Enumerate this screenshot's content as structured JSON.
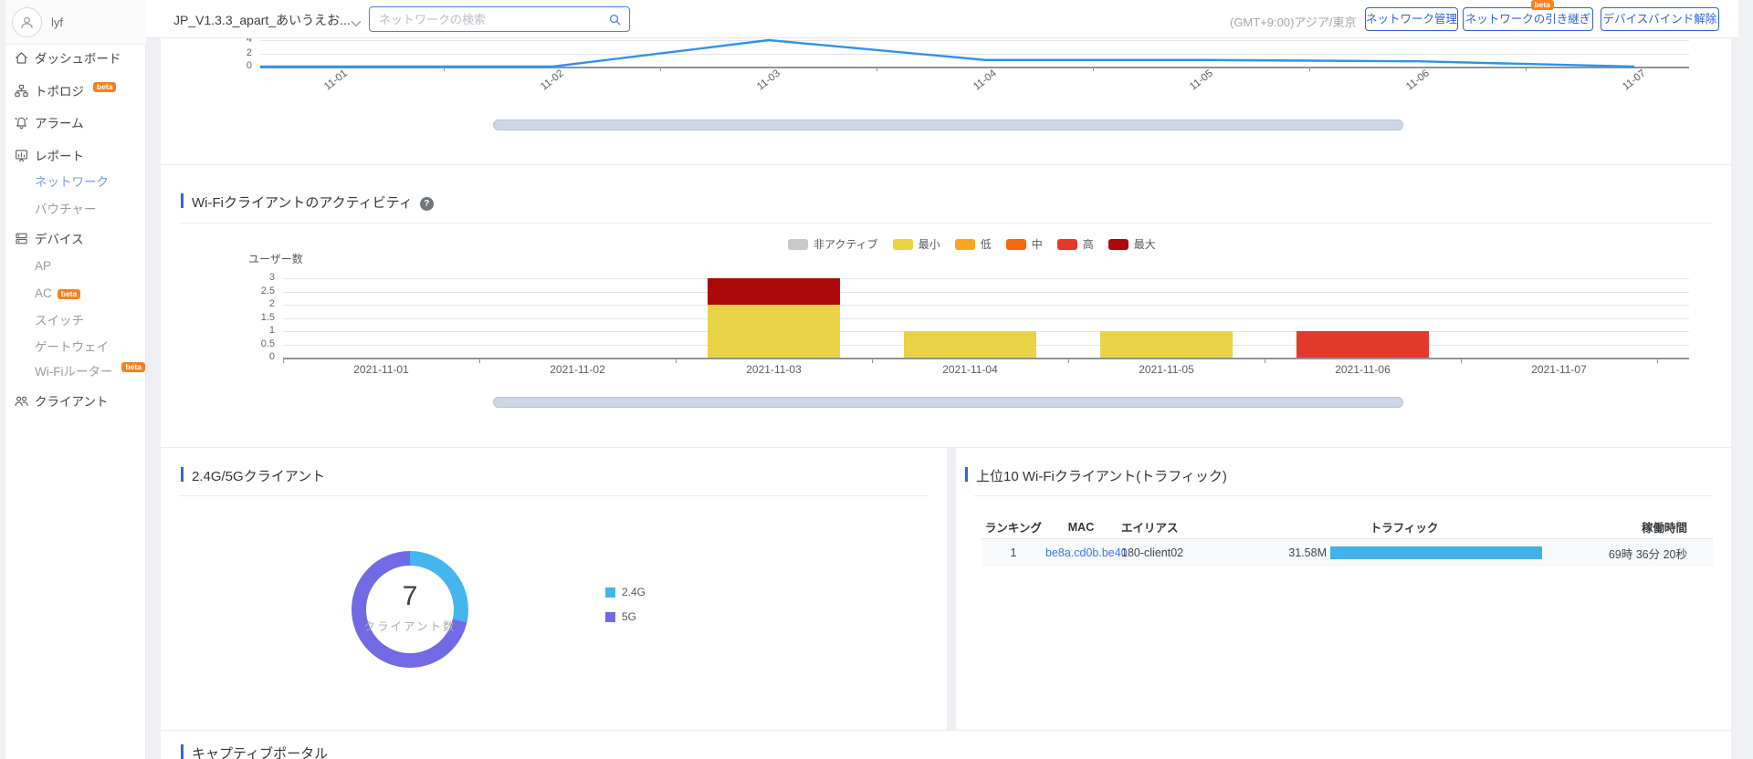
{
  "sidebar": {
    "user_name": "lyf",
    "items": [
      {
        "id": "dashboard",
        "label": "ダッシュボード",
        "icon": "home",
        "level": 1
      },
      {
        "id": "topology",
        "label": "トポロジ",
        "icon": "topology",
        "level": 1,
        "badge": "beta",
        "badge_raised": true
      },
      {
        "id": "alarm",
        "label": "アラーム",
        "icon": "alarm",
        "level": 1
      },
      {
        "id": "report",
        "label": "レポート",
        "icon": "report",
        "level": 1
      },
      {
        "id": "report-network",
        "label": "ネットワーク",
        "level": 2,
        "active": true
      },
      {
        "id": "report-voucher",
        "label": "バウチャー",
        "level": 2
      },
      {
        "id": "device",
        "label": "デバイス",
        "icon": "device",
        "level": 1
      },
      {
        "id": "device-ap",
        "label": "AP",
        "level": 2
      },
      {
        "id": "device-ac",
        "label": "AC",
        "level": 2,
        "badge": "beta"
      },
      {
        "id": "device-switch",
        "label": "スイッチ",
        "level": 2
      },
      {
        "id": "device-gateway",
        "label": "ゲートウェイ",
        "level": 2
      },
      {
        "id": "device-wifi-router",
        "label": "Wi-Fiルーター",
        "level": 2,
        "badge": "beta",
        "badge_raised": true
      },
      {
        "id": "client",
        "label": "クライアント",
        "icon": "client",
        "level": 1
      }
    ]
  },
  "topbar": {
    "network_selector": "JP_V1.3.3_apart_あいうえお...",
    "search_placeholder": "ネットワークの検索",
    "timezone": "(GMT+9:00)アジア/東京",
    "buttons": [
      {
        "id": "network-manage",
        "label": "ネットワーク管理"
      },
      {
        "id": "network-handover",
        "label": "ネットワークの引き継ぎ",
        "badge": "beta"
      },
      {
        "id": "device-unbind",
        "label": "デバイスバインド解除"
      }
    ]
  },
  "sections": {
    "wifi_activity": {
      "title": "Wi-Fiクライアントのアクティビティ",
      "help_glyph": "?"
    },
    "band_clients": {
      "title": "2.4G/5Gクライアント"
    },
    "top_clients": {
      "title": "上位10 Wi-Fiクライアント(トラフィック)"
    },
    "captive_portal": {
      "title": "キャプティブポータル"
    }
  },
  "chart_data": [
    {
      "id": "network-activity-trend",
      "type": "line",
      "x": [
        "11-01",
        "11-02",
        "11-03",
        "11-04",
        "11-05",
        "11-06",
        "11-07"
      ],
      "values": [
        0,
        0,
        4,
        1,
        1,
        0.8,
        0
      ],
      "yticks": [
        0,
        2,
        4
      ],
      "ylim": [
        0,
        4
      ],
      "color": "#2e93ea",
      "grid": true,
      "note": "top of chart scrolled out of view; horizontal zoom slider below"
    },
    {
      "id": "wifi-client-activity",
      "type": "bar",
      "stacked": true,
      "ylabel": "ユーザー数",
      "categories": [
        "2021-11-01",
        "2021-11-02",
        "2021-11-03",
        "2021-11-04",
        "2021-11-05",
        "2021-11-06",
        "2021-11-07"
      ],
      "yticks": [
        0,
        0.5,
        1,
        1.5,
        2,
        2.5,
        3
      ],
      "ylim": [
        0,
        3
      ],
      "legend_position": "top",
      "series": [
        {
          "name": "非アクティブ",
          "color": "#c7c9cc",
          "values": [
            0,
            0,
            0,
            0,
            0,
            0,
            0
          ]
        },
        {
          "name": "最小",
          "color": "#e9d245",
          "values": [
            0,
            0,
            2,
            1,
            1,
            0,
            0
          ]
        },
        {
          "name": "低",
          "color": "#f7a820",
          "values": [
            0,
            0,
            0,
            0,
            0,
            0,
            0
          ]
        },
        {
          "name": "中",
          "color": "#f2690f",
          "values": [
            0,
            0,
            0,
            0,
            0,
            0,
            0
          ]
        },
        {
          "name": "高",
          "color": "#e23a2a",
          "values": [
            0,
            0,
            0,
            0,
            0,
            1,
            0
          ]
        },
        {
          "name": "最大",
          "color": "#ac0a0a",
          "values": [
            0,
            0,
            1,
            0,
            0,
            0,
            0
          ]
        }
      ]
    },
    {
      "id": "band-clients-donut",
      "type": "pie",
      "donut": true,
      "center_value": "7",
      "center_label": "クライアント数",
      "labels": [
        "2.4G",
        "5G"
      ],
      "values": [
        2,
        5
      ],
      "colors": [
        "#45b5ee",
        "#7269e5"
      ],
      "legend_position": "right"
    }
  ],
  "top_clients_table": {
    "headers": [
      "ランキング",
      "MAC",
      "エイリアス",
      "トラフィック",
      "稼働時間"
    ],
    "rows": [
      {
        "rank": "1",
        "mac": "be8a.cd0b.be40",
        "alias": "180-client02",
        "traffic": "31.58M",
        "traffic_bar_ratio": 1,
        "uptime": "69時 36分 20秒"
      }
    ]
  }
}
